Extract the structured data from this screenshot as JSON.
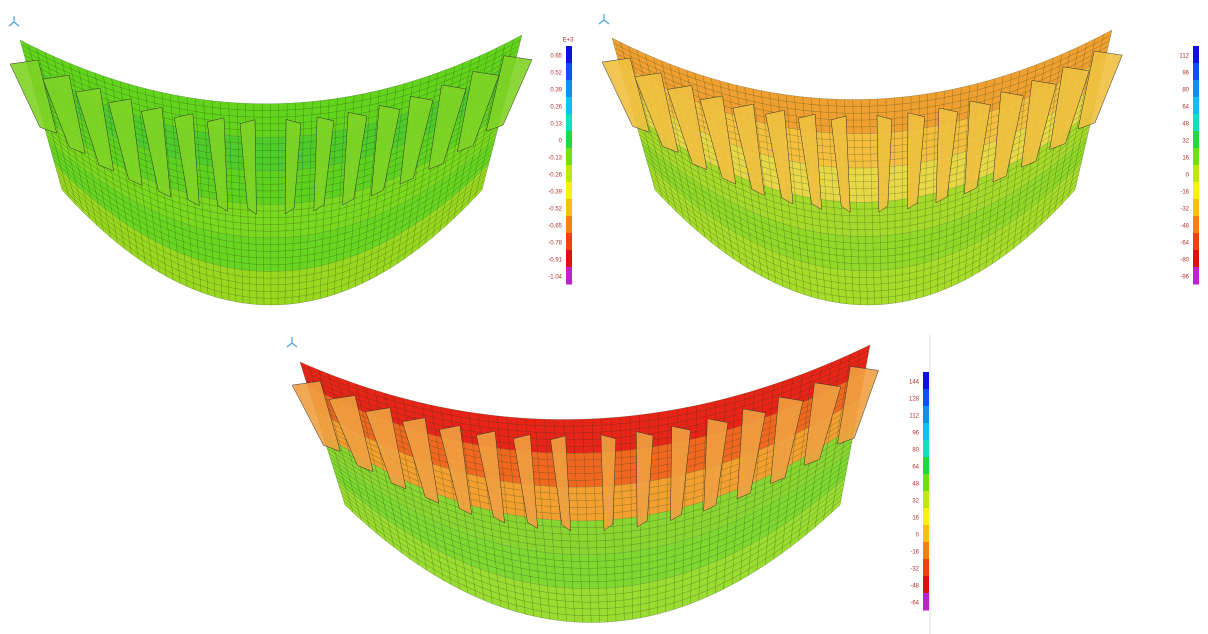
{
  "panels": [
    {
      "legend": {
        "unit": "E+3",
        "labels": [
          "0.65",
          "0.52",
          "0.39",
          "0.26",
          "0.13",
          "0",
          "-0.13",
          "-0.26",
          "-0.39",
          "-0.52",
          "-0.65",
          "-0.78",
          "-0.91",
          "-1.04"
        ]
      }
    },
    {
      "legend": {
        "labels": [
          "112",
          "96",
          "80",
          "64",
          "48",
          "32",
          "16",
          "0",
          "-16",
          "-32",
          "-48",
          "-64",
          "-80",
          "-96"
        ]
      }
    },
    {
      "legend": {
        "labels": [
          "144",
          "128",
          "112",
          "96",
          "80",
          "64",
          "48",
          "32",
          "16",
          "0",
          "-16",
          "-32",
          "-48",
          "-64"
        ]
      }
    }
  ]
}
